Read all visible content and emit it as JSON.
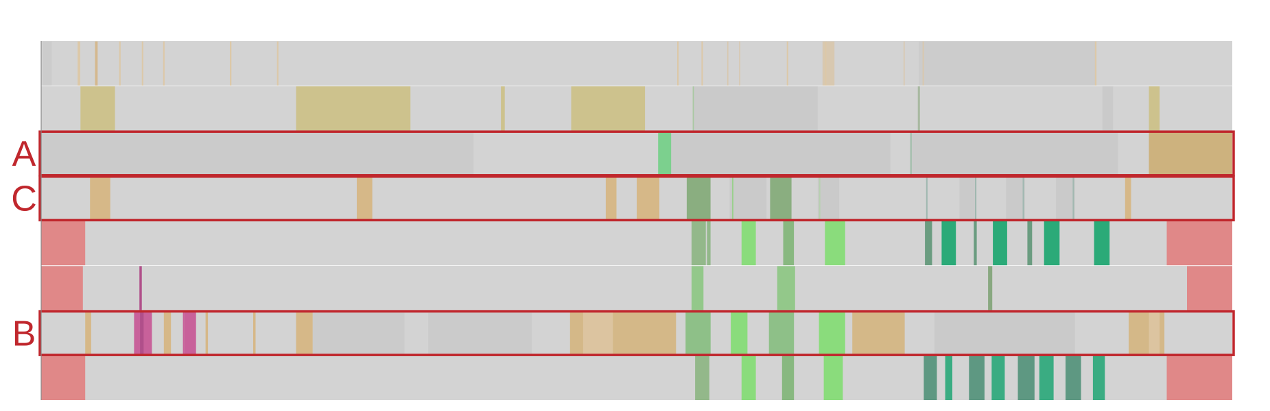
{
  "colors": {
    "background": "#ffffff",
    "track_base": "#d3d3d3",
    "track_shade": "#cacaca",
    "separator": "#ffffff",
    "axis": "#888888",
    "highlight_box": "#c0272d",
    "label": "#c0272d"
  },
  "tracks": [
    {
      "label": "",
      "highlighted": false,
      "segments": [
        {
          "start": 0.12,
          "end": 0.89,
          "color": "#cccccc"
        },
        {
          "start": 3.06,
          "end": 3.28,
          "color": "#dcc8a8"
        },
        {
          "start": 57.6,
          "end": 57.7,
          "color": "#d8c8b0"
        },
        {
          "start": 58.6,
          "end": 58.7,
          "color": "#d8c8b0"
        },
        {
          "start": 65.6,
          "end": 66.6,
          "color": "#d8c8b0"
        },
        {
          "start": 72.4,
          "end": 72.5,
          "color": "#d8c8b0"
        },
        {
          "start": 73.7,
          "end": 88.6,
          "color": "#cccccc"
        },
        {
          "start": 4.52,
          "end": 4.74,
          "color": "#d4b88e"
        },
        {
          "start": 6.55,
          "end": 6.67,
          "color": "#dcc8a8"
        },
        {
          "start": 8.45,
          "end": 8.57,
          "color": "#dcc8a8"
        },
        {
          "start": 10.24,
          "end": 10.36,
          "color": "#dcc8a8"
        },
        {
          "start": 15.84,
          "end": 15.97,
          "color": "#dcc8a8"
        },
        {
          "start": 19.8,
          "end": 19.92,
          "color": "#dcc8a8"
        },
        {
          "start": 53.4,
          "end": 53.52,
          "color": "#dcc8a8"
        },
        {
          "start": 55.44,
          "end": 55.56,
          "color": "#dcc8a8"
        },
        {
          "start": 62.6,
          "end": 62.72,
          "color": "#dcc8a8"
        },
        {
          "start": 65.8,
          "end": 65.92,
          "color": "#dcc8a8"
        },
        {
          "start": 88.47,
          "end": 88.6,
          "color": "#dcc8a8"
        },
        {
          "start": 74.0,
          "end": 74.12,
          "color": "#d8c8b0"
        }
      ]
    },
    {
      "label": "",
      "highlighted": false,
      "segments": [
        {
          "start": 3.3,
          "end": 6.2,
          "color": "#cdc28d"
        },
        {
          "start": 21.4,
          "end": 31.0,
          "color": "#cdc28d"
        },
        {
          "start": 38.6,
          "end": 38.92,
          "color": "#cdc28d"
        },
        {
          "start": 44.5,
          "end": 50.7,
          "color": "#cdc28d"
        },
        {
          "start": 54.7,
          "end": 54.82,
          "color": "#a8c8a0"
        },
        {
          "start": 54.8,
          "end": 65.2,
          "color": "#cacaca"
        },
        {
          "start": 73.6,
          "end": 73.78,
          "color": "#a8b8a0"
        },
        {
          "start": 89.1,
          "end": 90.0,
          "color": "#cacaca"
        },
        {
          "start": 93.0,
          "end": 93.9,
          "color": "#cdc28d"
        }
      ]
    },
    {
      "label": "A",
      "highlighted": true,
      "segments": [
        {
          "start": 0.0,
          "end": 36.3,
          "color": "#cbcbcb"
        },
        {
          "start": 51.8,
          "end": 52.9,
          "color": "#7cd08e"
        },
        {
          "start": 52.9,
          "end": 71.3,
          "color": "#cacaca"
        },
        {
          "start": 72.95,
          "end": 73.1,
          "color": "#a8c0b0"
        },
        {
          "start": 73.1,
          "end": 90.4,
          "color": "#cacaca"
        },
        {
          "start": 93.0,
          "end": 100.0,
          "color": "#cdb27e"
        }
      ]
    },
    {
      "label": "C",
      "highlighted": true,
      "segments": [
        {
          "start": 4.1,
          "end": 5.8,
          "color": "#d6b888"
        },
        {
          "start": 26.5,
          "end": 27.8,
          "color": "#d6b888"
        },
        {
          "start": 47.4,
          "end": 48.3,
          "color": "#d6b888"
        },
        {
          "start": 50.0,
          "end": 51.9,
          "color": "#d6b888"
        },
        {
          "start": 54.2,
          "end": 56.2,
          "color": "#8aae80"
        },
        {
          "start": 57.8,
          "end": 60.9,
          "color": "#cacaca"
        },
        {
          "start": 58.0,
          "end": 58.12,
          "color": "#9bd08e"
        },
        {
          "start": 61.2,
          "end": 63.0,
          "color": "#8aae80"
        },
        {
          "start": 65.2,
          "end": 67.0,
          "color": "#cacaca"
        },
        {
          "start": 65.3,
          "end": 65.42,
          "color": "#b8d0b0"
        },
        {
          "start": 74.3,
          "end": 74.42,
          "color": "#a0b8b0"
        },
        {
          "start": 77.1,
          "end": 78.5,
          "color": "#cacaca"
        },
        {
          "start": 78.4,
          "end": 78.52,
          "color": "#a0b8b0"
        },
        {
          "start": 81.0,
          "end": 82.6,
          "color": "#cacaca"
        },
        {
          "start": 82.4,
          "end": 82.52,
          "color": "#a0b8b0"
        },
        {
          "start": 85.2,
          "end": 86.8,
          "color": "#cacaca"
        },
        {
          "start": 86.6,
          "end": 86.72,
          "color": "#a0b8b0"
        },
        {
          "start": 91.0,
          "end": 91.5,
          "color": "#d6b888"
        }
      ]
    },
    {
      "label": "",
      "highlighted": false,
      "segments": [
        {
          "start": 0.0,
          "end": 3.7,
          "color": "#e08888"
        },
        {
          "start": 54.6,
          "end": 55.8,
          "color": "#93b88a"
        },
        {
          "start": 55.9,
          "end": 56.2,
          "color": "#93b88a"
        },
        {
          "start": 58.8,
          "end": 60.0,
          "color": "#8adc7c"
        },
        {
          "start": 62.3,
          "end": 63.2,
          "color": "#88b880"
        },
        {
          "start": 65.8,
          "end": 67.5,
          "color": "#8adc7c"
        },
        {
          "start": 74.2,
          "end": 74.8,
          "color": "#6a9c80"
        },
        {
          "start": 75.6,
          "end": 76.8,
          "color": "#2baa78"
        },
        {
          "start": 78.3,
          "end": 78.55,
          "color": "#6a9c80"
        },
        {
          "start": 79.9,
          "end": 81.1,
          "color": "#2baa78"
        },
        {
          "start": 82.8,
          "end": 83.2,
          "color": "#6a9c80"
        },
        {
          "start": 84.2,
          "end": 85.5,
          "color": "#2baa78"
        },
        {
          "start": 88.4,
          "end": 89.7,
          "color": "#2baa78"
        },
        {
          "start": 94.5,
          "end": 100.0,
          "color": "#e08888"
        }
      ]
    },
    {
      "label": "",
      "highlighted": false,
      "segments": [
        {
          "start": 0.0,
          "end": 3.5,
          "color": "#e08888"
        },
        {
          "start": 8.25,
          "end": 8.45,
          "color": "#b04f8a"
        },
        {
          "start": 54.6,
          "end": 55.6,
          "color": "#93c88a"
        },
        {
          "start": 61.8,
          "end": 63.3,
          "color": "#93c88a"
        },
        {
          "start": 79.5,
          "end": 79.85,
          "color": "#88a880"
        },
        {
          "start": 96.2,
          "end": 100.0,
          "color": "#e08888"
        }
      ]
    },
    {
      "label": "B",
      "highlighted": true,
      "segments": [
        {
          "start": 3.7,
          "end": 4.2,
          "color": "#d6b888"
        },
        {
          "start": 7.8,
          "end": 9.3,
          "color": "#c8619a"
        },
        {
          "start": 8.3,
          "end": 8.6,
          "color": "#b04f8a"
        },
        {
          "start": 10.3,
          "end": 10.9,
          "color": "#d6b888"
        },
        {
          "start": 11.9,
          "end": 12.0,
          "color": "#c8619a"
        },
        {
          "start": 12.0,
          "end": 13.0,
          "color": "#c8619a"
        },
        {
          "start": 13.8,
          "end": 14.0,
          "color": "#d6b888"
        },
        {
          "start": 17.8,
          "end": 18.0,
          "color": "#d6b888"
        },
        {
          "start": 21.4,
          "end": 22.8,
          "color": "#d6b888"
        },
        {
          "start": 22.8,
          "end": 30.5,
          "color": "#cbcbcb"
        },
        {
          "start": 32.5,
          "end": 41.2,
          "color": "#cbcbcb"
        },
        {
          "start": 44.4,
          "end": 53.3,
          "color": "#d4b888"
        },
        {
          "start": 45.5,
          "end": 48.0,
          "color": "#dcc4a0"
        },
        {
          "start": 54.1,
          "end": 56.2,
          "color": "#8ec088"
        },
        {
          "start": 57.9,
          "end": 59.3,
          "color": "#8adc7c"
        },
        {
          "start": 61.1,
          "end": 63.2,
          "color": "#8ec088"
        },
        {
          "start": 65.3,
          "end": 67.5,
          "color": "#8adc7c"
        },
        {
          "start": 68.1,
          "end": 72.5,
          "color": "#d4b888"
        },
        {
          "start": 75.0,
          "end": 86.8,
          "color": "#cacaca"
        },
        {
          "start": 91.3,
          "end": 94.3,
          "color": "#d4b888"
        },
        {
          "start": 93.0,
          "end": 93.9,
          "color": "#dcc4a0"
        }
      ]
    },
    {
      "label": "",
      "highlighted": false,
      "segments": [
        {
          "start": 0.0,
          "end": 3.7,
          "color": "#e08888"
        },
        {
          "start": 54.9,
          "end": 56.1,
          "color": "#93b88a"
        },
        {
          "start": 58.8,
          "end": 60.0,
          "color": "#8adc7c"
        },
        {
          "start": 62.2,
          "end": 63.2,
          "color": "#88b880"
        },
        {
          "start": 65.7,
          "end": 67.3,
          "color": "#8adc7c"
        },
        {
          "start": 74.1,
          "end": 75.2,
          "color": "#5e9882"
        },
        {
          "start": 75.9,
          "end": 76.5,
          "color": "#3aac82"
        },
        {
          "start": 77.9,
          "end": 79.2,
          "color": "#5e9882"
        },
        {
          "start": 79.8,
          "end": 80.9,
          "color": "#3aac82"
        },
        {
          "start": 82.0,
          "end": 83.4,
          "color": "#5e9882"
        },
        {
          "start": 83.8,
          "end": 85.0,
          "color": "#3aac82"
        },
        {
          "start": 86.0,
          "end": 87.3,
          "color": "#5e9882"
        },
        {
          "start": 88.3,
          "end": 89.3,
          "color": "#3aac82"
        },
        {
          "start": 94.5,
          "end": 100.0,
          "color": "#e08888"
        }
      ]
    }
  ]
}
